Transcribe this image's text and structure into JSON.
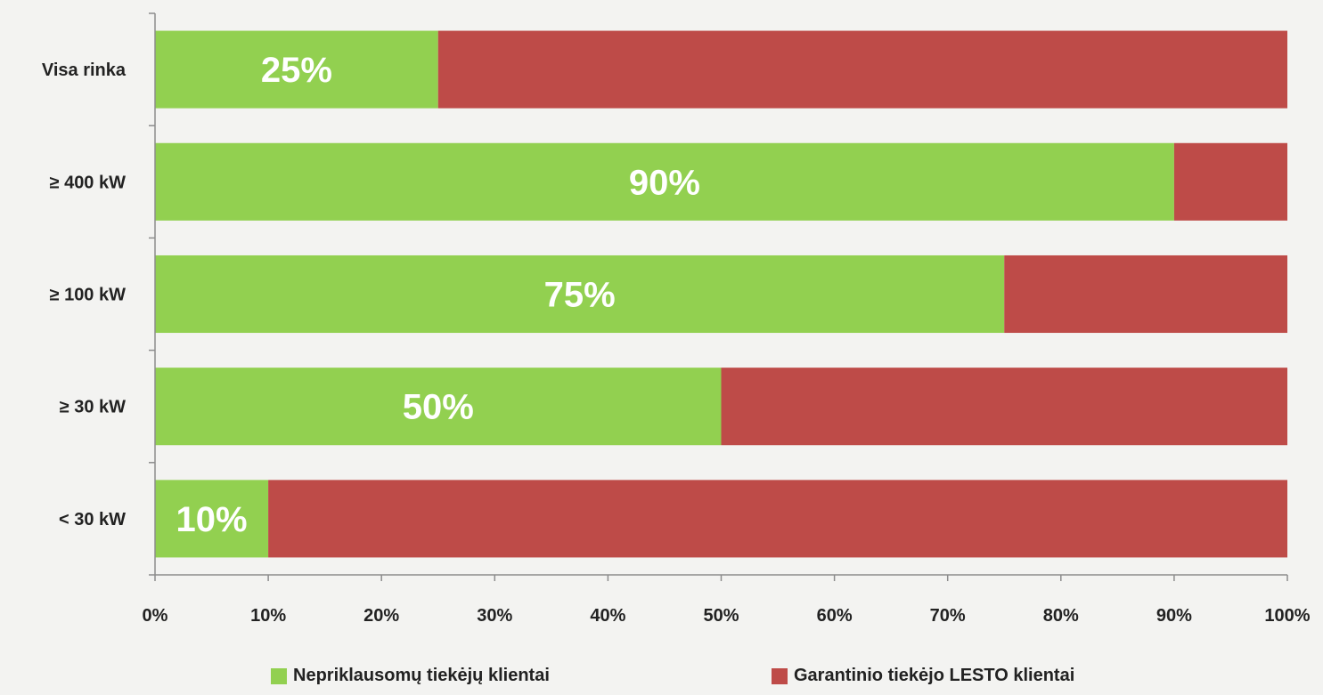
{
  "chart_data": {
    "type": "bar",
    "orientation": "horizontal",
    "stacked": true,
    "categories": [
      "Visa rinka",
      "≥ 400 kW",
      "≥ 100 kW",
      "≥ 30 kW",
      "< 30 kW"
    ],
    "series": [
      {
        "name": "Nepriklausomų tiekėjų klientai",
        "values": [
          25,
          90,
          75,
          50,
          10
        ],
        "color": "#92d050"
      },
      {
        "name": "Garantinio tiekėjo LESTO klientai",
        "values": [
          75,
          10,
          25,
          50,
          90
        ],
        "color": "#be4b48"
      }
    ],
    "data_labels": [
      "25%",
      "90%",
      "75%",
      "50%",
      "10%"
    ],
    "x_ticks": [
      "0%",
      "10%",
      "20%",
      "30%",
      "40%",
      "50%",
      "60%",
      "70%",
      "80%",
      "90%",
      "100%"
    ],
    "xlim": [
      0,
      100
    ],
    "grid": false,
    "legend_position": "bottom"
  }
}
